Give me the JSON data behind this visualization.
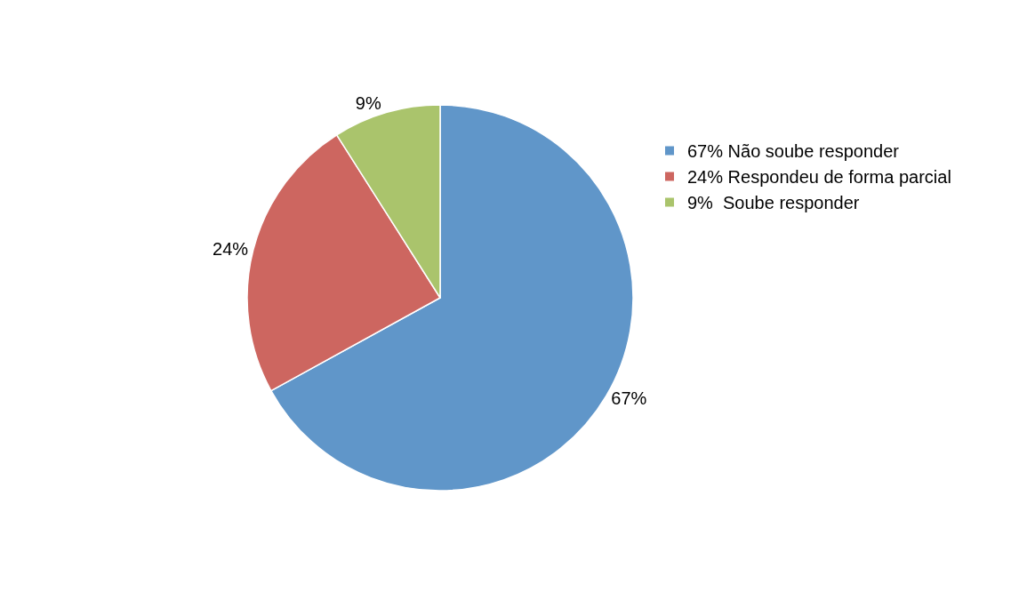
{
  "chart_data": {
    "type": "pie",
    "categories": [
      "67% Não soube responder",
      "24% Respondeu de forma parcial",
      "9%  Soube responder"
    ],
    "values": [
      67,
      24,
      9
    ],
    "colors": [
      "#6096c9",
      "#cd6660",
      "#aac46c"
    ],
    "value_labels": [
      "67%",
      "24%",
      "9%"
    ],
    "legend": "top right"
  }
}
